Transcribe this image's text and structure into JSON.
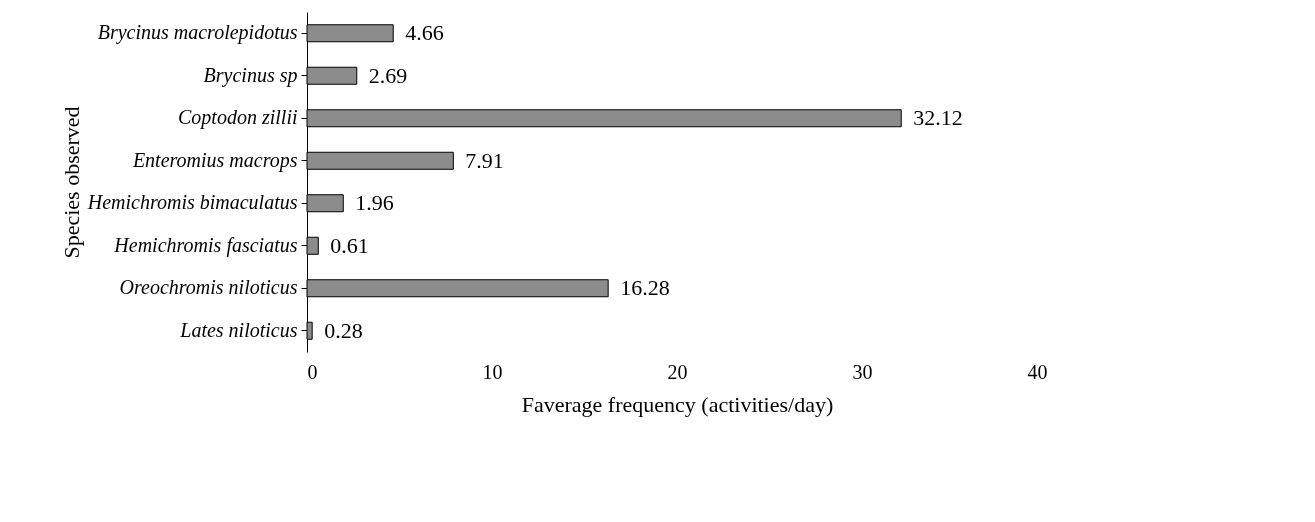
{
  "chart_data": {
    "type": "bar",
    "orientation": "horizontal",
    "xlabel": "Faverage frequency (activities/day)",
    "ylabel": "Species observed",
    "categories": [
      "Brycinus macrolepidotus",
      "Brycinus sp",
      "Coptodon zillii",
      "Enteromius macrops",
      "Hemichromis bimaculatus",
      "Hemichromis fasciatus",
      "Oreochromis niloticus",
      "Lates niloticus"
    ],
    "values": [
      4.66,
      2.69,
      32.12,
      7.91,
      1.96,
      0.61,
      16.28,
      0.28
    ],
    "color": "#8c8c8c",
    "xlim": [
      0,
      40
    ],
    "xticks": [
      0,
      10,
      20,
      30,
      40
    ],
    "grid": false,
    "data_labels": true
  }
}
